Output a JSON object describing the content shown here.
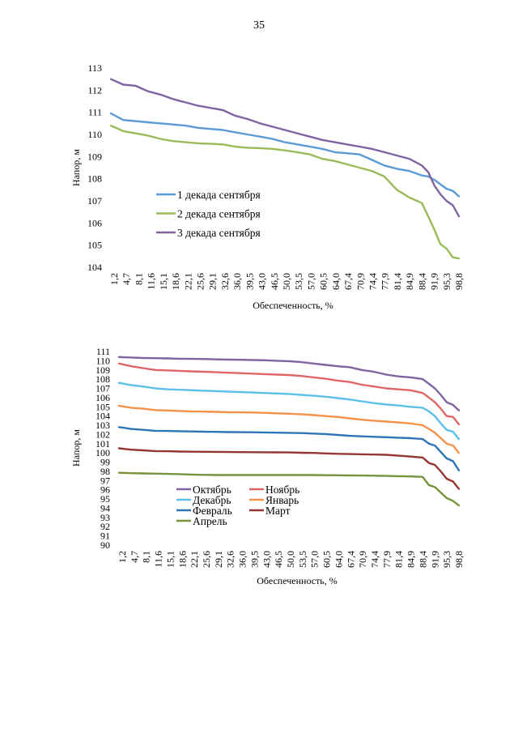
{
  "page": {
    "number": "35"
  },
  "chart_data": [
    {
      "type": "line",
      "ylabel": "Напор, м",
      "xlabel": "Обеспеченность, %",
      "ylim": [
        104,
        113
      ],
      "yticks": [
        104,
        105,
        106,
        107,
        108,
        109,
        110,
        111,
        112,
        113
      ],
      "xticks": [
        "1,2",
        "4,7",
        "8,1",
        "11,6",
        "15,1",
        "18,6",
        "22,1",
        "25,6",
        "29,1",
        "32,6",
        "36,0",
        "39,5",
        "43,0",
        "46,5",
        "50,0",
        "53,5",
        "57,0",
        "60,5",
        "64,0",
        "67,4",
        "70,9",
        "74,4",
        "77,9",
        "81,4",
        "84,9",
        "88,4",
        "91,9",
        "95,3",
        "98,8"
      ],
      "grid": false,
      "legend_position": "center-left",
      "x": [
        1.2,
        4.7,
        8.1,
        11.6,
        15.1,
        18.6,
        22.1,
        25.6,
        29.1,
        32.6,
        36.0,
        39.5,
        43.0,
        46.5,
        50.0,
        53.5,
        57.0,
        60.5,
        64.0,
        67.4,
        70.9,
        74.4,
        77.9,
        81.4,
        84.9,
        88.4,
        90.2,
        91.9,
        93.6,
        95.3,
        97.1,
        98.8
      ],
      "series": [
        {
          "name": "1 декада сентября",
          "color": "#5B9BD5",
          "values": [
            110.95,
            110.65,
            110.6,
            110.55,
            110.5,
            110.45,
            110.4,
            110.3,
            110.25,
            110.2,
            110.1,
            110.0,
            109.9,
            109.8,
            109.65,
            109.55,
            109.45,
            109.35,
            109.2,
            109.15,
            109.1,
            108.85,
            108.6,
            108.45,
            108.35,
            108.15,
            108.1,
            107.95,
            107.75,
            107.55,
            107.45,
            107.2
          ]
        },
        {
          "name": "2 декада сентября",
          "color": "#9BBB59",
          "values": [
            110.4,
            110.15,
            110.05,
            109.95,
            109.8,
            109.7,
            109.65,
            109.6,
            109.58,
            109.55,
            109.45,
            109.4,
            109.38,
            109.35,
            109.28,
            109.2,
            109.1,
            108.9,
            108.8,
            108.65,
            108.5,
            108.35,
            108.1,
            107.5,
            107.15,
            106.9,
            106.3,
            105.7,
            105.05,
            104.85,
            104.45,
            104.4
          ]
        },
        {
          "name": "3 декада сентября",
          "color": "#8064A2",
          "values": [
            112.5,
            112.25,
            112.2,
            111.95,
            111.8,
            111.6,
            111.45,
            111.3,
            111.2,
            111.1,
            110.85,
            110.7,
            110.5,
            110.35,
            110.2,
            110.05,
            109.9,
            109.75,
            109.65,
            109.55,
            109.45,
            109.35,
            109.2,
            109.05,
            108.9,
            108.6,
            108.3,
            107.7,
            107.3,
            107.0,
            106.8,
            106.3
          ]
        }
      ]
    },
    {
      "type": "line",
      "ylabel": "Напор, м",
      "xlabel": "Обеспеченность, %",
      "ylim": [
        90,
        111
      ],
      "yticks": [
        90,
        91,
        92,
        93,
        94,
        95,
        96,
        97,
        98,
        99,
        100,
        101,
        102,
        103,
        104,
        105,
        106,
        107,
        108,
        109,
        110,
        111
      ],
      "xticks": [
        "1,2",
        "4,7",
        "8,1",
        "11,6",
        "15,1",
        "18,6",
        "22,1",
        "25,6",
        "29,1",
        "32,6",
        "36,0",
        "39,5",
        "43,0",
        "46,5",
        "50,0",
        "53,5",
        "57,0",
        "60,5",
        "64,0",
        "67,4",
        "70,9",
        "74,4",
        "77,9",
        "81,4",
        "84,9",
        "88,4",
        "91,9",
        "95,3",
        "98,8"
      ],
      "grid": false,
      "legend_position": "center-left",
      "legend_columns": 2,
      "x": [
        1.2,
        4.7,
        8.1,
        11.6,
        15.1,
        18.6,
        22.1,
        25.6,
        29.1,
        32.6,
        36.0,
        39.5,
        43.0,
        46.5,
        50.0,
        53.5,
        57.0,
        60.5,
        64.0,
        67.4,
        70.9,
        74.4,
        77.9,
        81.4,
        84.9,
        88.4,
        90.2,
        91.9,
        93.6,
        95.3,
        97.1,
        98.8
      ],
      "series": [
        {
          "name": "Октябрь",
          "color": "#8064A2",
          "values": [
            110.4,
            110.35,
            110.3,
            110.28,
            110.25,
            110.22,
            110.2,
            110.18,
            110.15,
            110.12,
            110.1,
            110.08,
            110.05,
            110.0,
            109.95,
            109.85,
            109.7,
            109.55,
            109.4,
            109.3,
            109.0,
            108.8,
            108.5,
            108.3,
            108.2,
            108.0,
            107.5,
            107.0,
            106.3,
            105.5,
            105.2,
            104.6
          ]
        },
        {
          "name": "Ноябрь",
          "color": "#E06666",
          "values": [
            109.7,
            109.4,
            109.2,
            109.0,
            108.95,
            108.9,
            108.85,
            108.8,
            108.75,
            108.7,
            108.65,
            108.6,
            108.55,
            108.5,
            108.45,
            108.35,
            108.2,
            108.05,
            107.85,
            107.7,
            107.4,
            107.2,
            107.0,
            106.9,
            106.8,
            106.5,
            106.0,
            105.5,
            104.8,
            104.0,
            103.9,
            103.1
          ]
        },
        {
          "name": "Декабрь",
          "color": "#5BC0EB",
          "values": [
            107.6,
            107.35,
            107.2,
            107.0,
            106.9,
            106.85,
            106.8,
            106.75,
            106.7,
            106.65,
            106.6,
            106.55,
            106.5,
            106.45,
            106.4,
            106.3,
            106.2,
            106.1,
            105.95,
            105.8,
            105.6,
            105.4,
            105.25,
            105.15,
            105.0,
            104.9,
            104.5,
            104.0,
            103.2,
            102.5,
            102.3,
            101.5
          ]
        },
        {
          "name": "Январь",
          "color": "#F4924A",
          "values": [
            105.1,
            104.9,
            104.8,
            104.65,
            104.6,
            104.55,
            104.5,
            104.48,
            104.45,
            104.42,
            104.4,
            104.38,
            104.35,
            104.3,
            104.25,
            104.2,
            104.1,
            104.0,
            103.9,
            103.75,
            103.6,
            103.5,
            103.4,
            103.3,
            103.2,
            103.0,
            102.6,
            102.2,
            101.6,
            101.0,
            100.8,
            100.0
          ]
        },
        {
          "name": "Февраль",
          "color": "#2E75B6",
          "values": [
            102.8,
            102.6,
            102.5,
            102.4,
            102.38,
            102.35,
            102.33,
            102.3,
            102.28,
            102.26,
            102.25,
            102.24,
            102.22,
            102.2,
            102.18,
            102.15,
            102.1,
            102.05,
            101.95,
            101.85,
            101.8,
            101.75,
            101.7,
            101.65,
            101.6,
            101.5,
            101.0,
            100.8,
            100.1,
            99.4,
            99.1,
            98.1
          ]
        },
        {
          "name": "Март",
          "color": "#943634",
          "values": [
            100.5,
            100.35,
            100.28,
            100.2,
            100.18,
            100.15,
            100.13,
            100.12,
            100.11,
            100.1,
            100.09,
            100.08,
            100.07,
            100.06,
            100.05,
            100.02,
            100.0,
            99.95,
            99.9,
            99.88,
            99.85,
            99.82,
            99.8,
            99.7,
            99.6,
            99.5,
            98.9,
            98.7,
            98.0,
            97.2,
            96.9,
            96.1
          ]
        },
        {
          "name": "Апрель",
          "color": "#77933C",
          "values": [
            97.85,
            97.8,
            97.78,
            97.75,
            97.72,
            97.7,
            97.65,
            97.62,
            97.6,
            97.6,
            97.6,
            97.6,
            97.6,
            97.6,
            97.6,
            97.6,
            97.6,
            97.58,
            97.57,
            97.56,
            97.55,
            97.53,
            97.5,
            97.48,
            97.45,
            97.4,
            96.5,
            96.3,
            95.7,
            95.1,
            94.8,
            94.3
          ]
        }
      ]
    }
  ]
}
